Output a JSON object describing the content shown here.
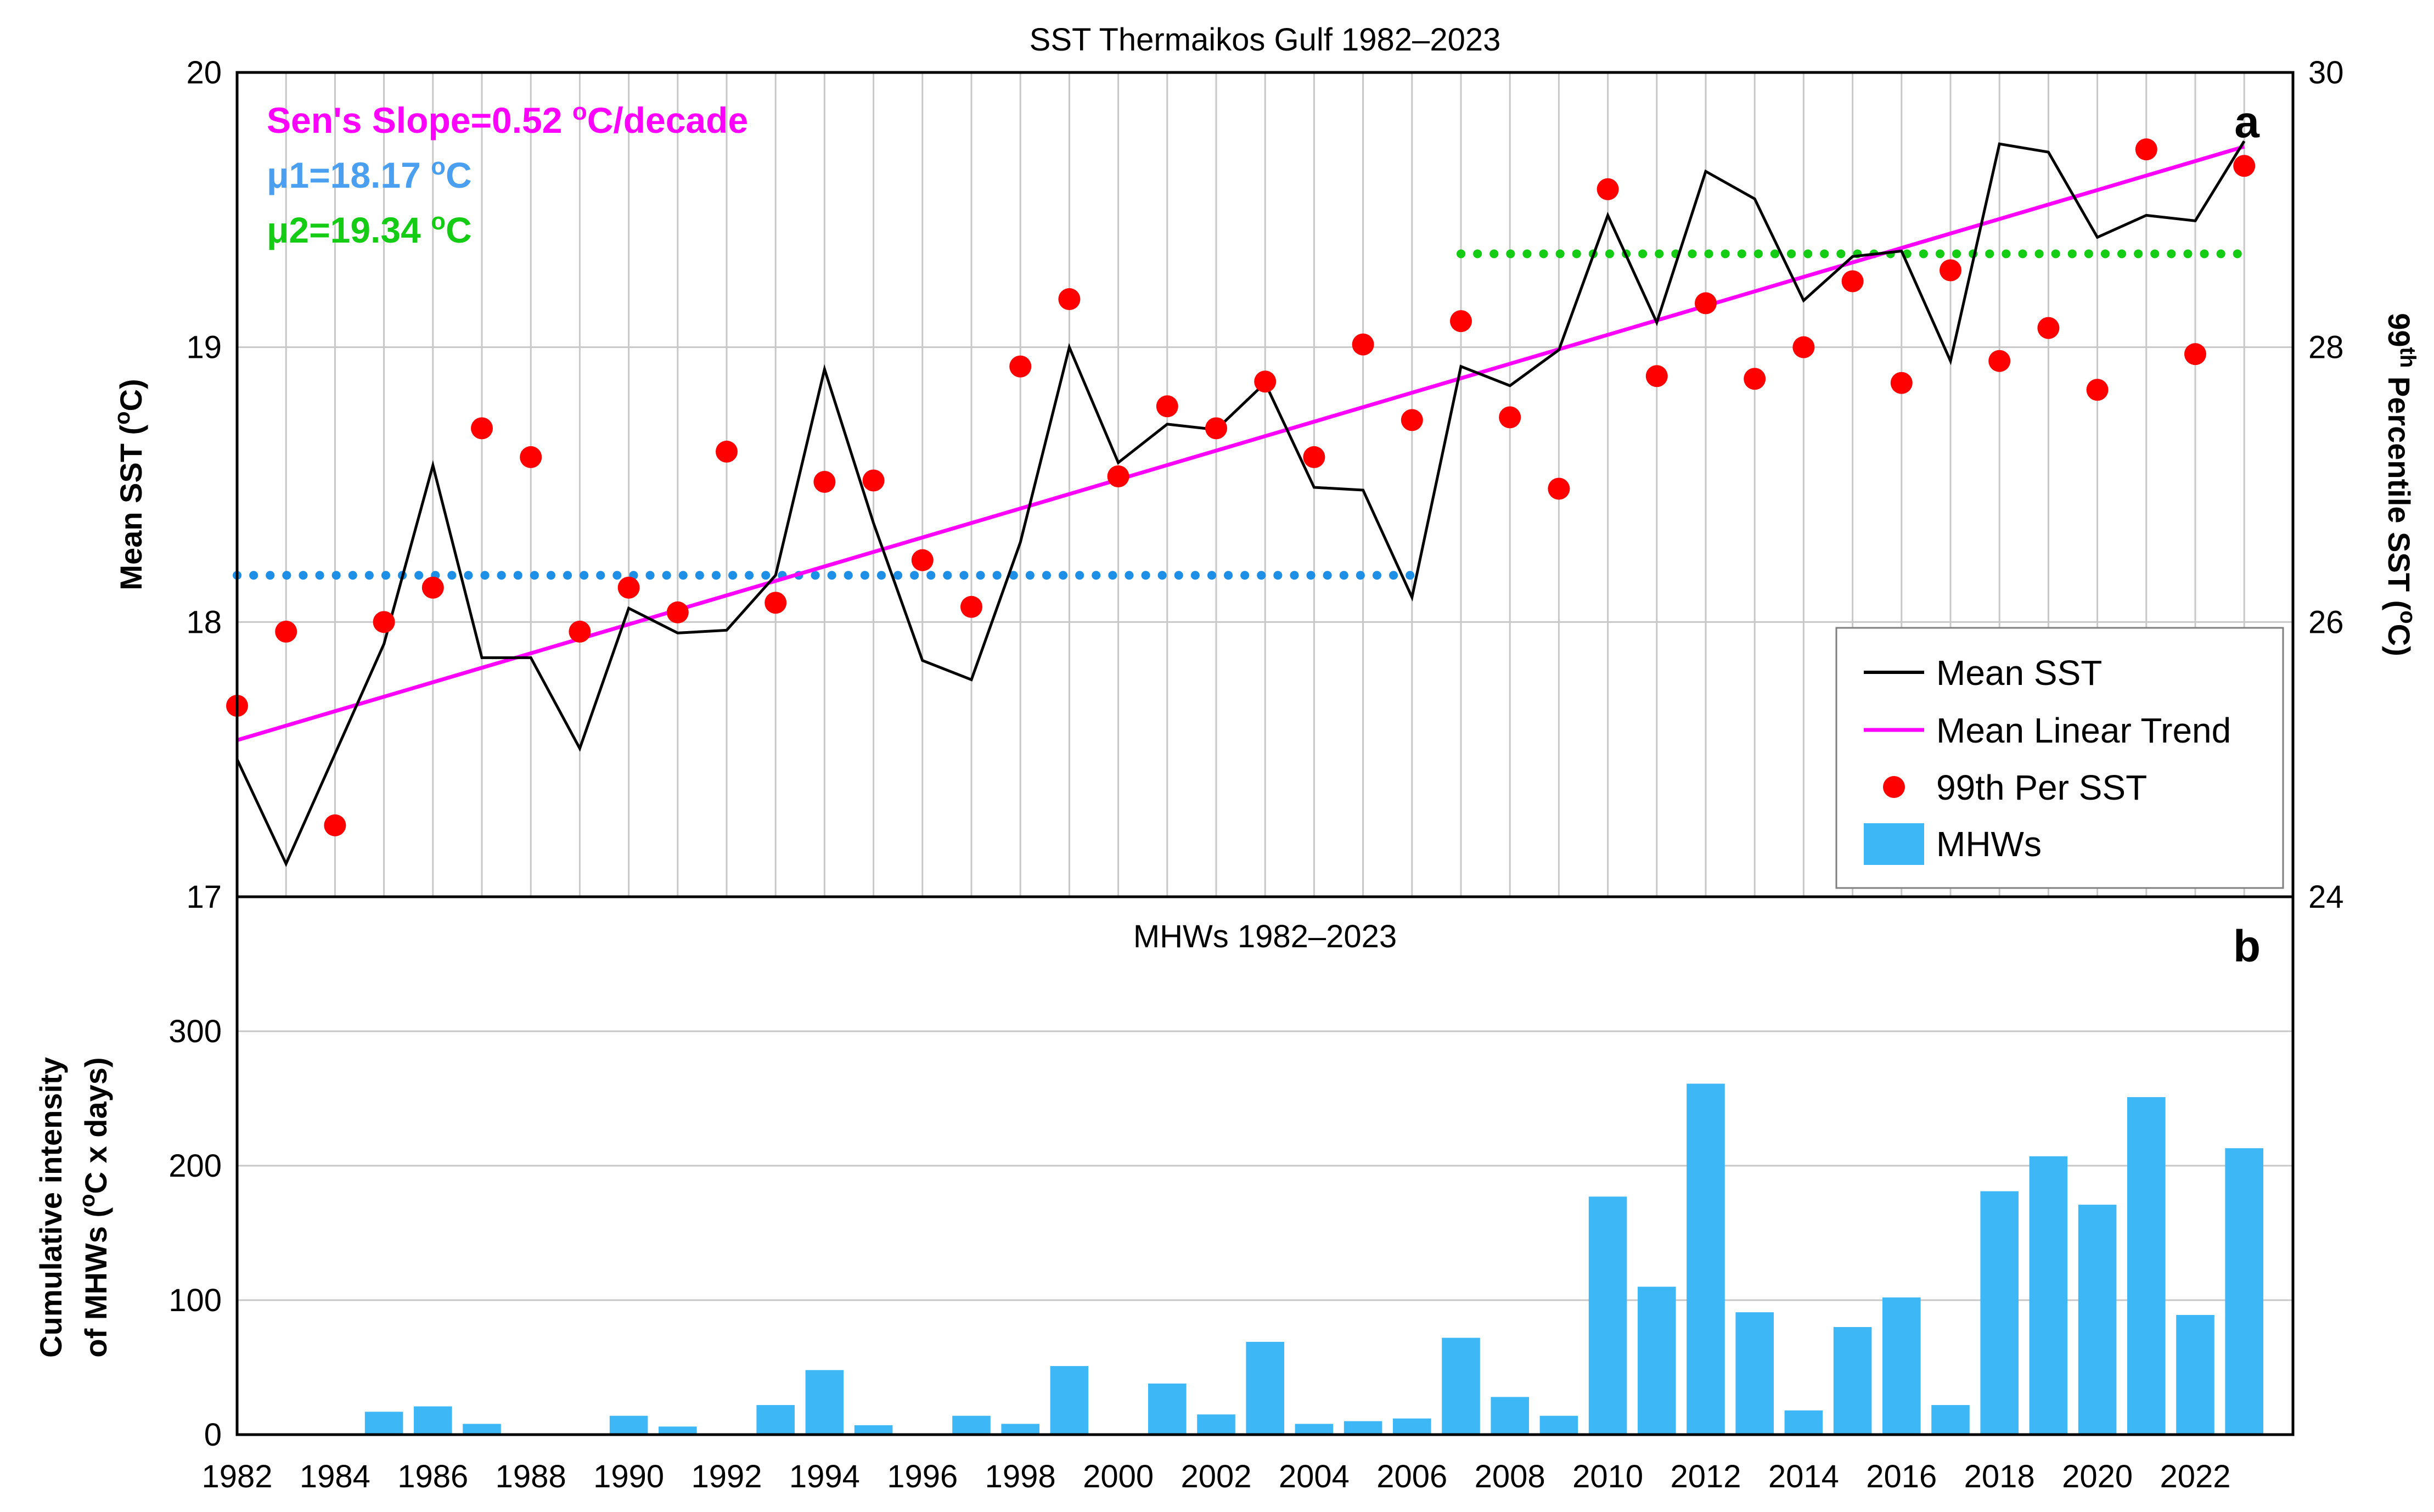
{
  "chart_data": [
    {
      "type": "line",
      "panel": "a",
      "title": "SST Thermaikos Gulf 1982–2023",
      "ylabel": "Mean SST (ºC)",
      "ylabel_html": [
        "Mean SST (",
        "o",
        "C)"
      ],
      "y2label_parts": [
        "99",
        "th",
        " Percentile SST (",
        "o",
        "C)"
      ],
      "ylim": [
        17,
        20
      ],
      "y2lim": [
        24,
        30
      ],
      "yticks": [
        "17",
        "18",
        "19",
        "20"
      ],
      "y2ticks": [
        "24",
        "26",
        "28",
        "30"
      ],
      "grid": true,
      "legend_placement": "lower-right",
      "x": [
        1982,
        1983,
        1984,
        1985,
        1986,
        1987,
        1988,
        1989,
        1990,
        1991,
        1992,
        1993,
        1994,
        1995,
        1996,
        1997,
        1998,
        1999,
        2000,
        2001,
        2002,
        2003,
        2004,
        2005,
        2006,
        2007,
        2008,
        2009,
        2010,
        2011,
        2012,
        2013,
        2014,
        2015,
        2016,
        2017,
        2018,
        2019,
        2020,
        2021,
        2022,
        2023
      ],
      "series": [
        {
          "name": "Mean SST",
          "type": "line",
          "axis": "left",
          "color": "#000000",
          "values": [
            17.5,
            17.12,
            17.52,
            17.92,
            18.57,
            17.87,
            17.87,
            17.54,
            18.05,
            17.96,
            17.97,
            18.17,
            18.92,
            18.36,
            17.86,
            17.79,
            18.29,
            19.0,
            18.58,
            18.72,
            18.7,
            18.87,
            18.49,
            18.48,
            18.09,
            18.93,
            18.86,
            18.99,
            19.48,
            19.09,
            19.64,
            19.54,
            19.17,
            19.33,
            19.35,
            18.95,
            19.74,
            19.71,
            19.4,
            19.48,
            19.46,
            19.75
          ]
        },
        {
          "name": "Mean Linear Trend",
          "type": "line",
          "axis": "left",
          "color": "#ff00ff",
          "start": [
            1982,
            17.57
          ],
          "end": [
            2023,
            19.73
          ]
        },
        {
          "name": "99th Per SST",
          "type": "scatter",
          "axis": "right",
          "color": "#ff0000",
          "values": [
            25.39,
            25.93,
            24.52,
            26.0,
            26.25,
            27.41,
            27.2,
            25.93,
            26.25,
            26.07,
            27.24,
            26.14,
            27.02,
            27.03,
            26.45,
            26.11,
            27.86,
            28.35,
            27.06,
            27.57,
            27.41,
            27.75,
            27.2,
            28.02,
            27.47,
            28.19,
            27.49,
            26.97,
            29.15,
            27.79,
            28.32,
            27.77,
            28.0,
            28.48,
            27.74,
            28.56,
            27.9,
            28.14,
            27.69,
            29.44,
            27.95,
            29.32
          ]
        }
      ],
      "means": [
        {
          "name": "μ1",
          "value": 18.17,
          "x_range": [
            1982,
            2006
          ],
          "color": "#1e8fe6"
        },
        {
          "name": "μ2",
          "value": 19.34,
          "x_range": [
            2007,
            2023
          ],
          "color": "#14cc14"
        }
      ],
      "annotations": {
        "slope_text": "Sen's Slope=0.52 ",
        "slope_sup": "o",
        "slope_unit": "C/decade",
        "mu1_text": "μ1=18.17 ",
        "mu1_sup": "o",
        "mu1_unit": "C",
        "mu2_text": "μ2=19.34 ",
        "mu2_sup": "o",
        "mu2_unit": "C"
      },
      "legend": [
        "Mean SST",
        "Mean Linear Trend",
        "99th Per SST",
        "MHWs"
      ]
    },
    {
      "type": "bar",
      "panel": "b",
      "title": "MHWs 1982–2023",
      "ylabel_line1": "Cumulative intensity",
      "ylabel_line2_parts": [
        "of MHWs (",
        "o",
        "C x days)"
      ],
      "ylim": [
        0,
        400
      ],
      "yticks": [
        "0",
        "100",
        "200",
        "300"
      ],
      "grid": true,
      "color": "#3eb7f7",
      "categories": [
        1982,
        1983,
        1984,
        1985,
        1986,
        1987,
        1988,
        1989,
        1990,
        1991,
        1992,
        1993,
        1994,
        1995,
        1996,
        1997,
        1998,
        1999,
        2000,
        2001,
        2002,
        2003,
        2004,
        2005,
        2006,
        2007,
        2008,
        2009,
        2010,
        2011,
        2012,
        2013,
        2014,
        2015,
        2016,
        2017,
        2018,
        2019,
        2020,
        2021,
        2022,
        2023
      ],
      "values": [
        0,
        0,
        0,
        17,
        21,
        8,
        0,
        0,
        14,
        6,
        0,
        22,
        48,
        7,
        0,
        14,
        8,
        51,
        0,
        38,
        15,
        69,
        8,
        10,
        12,
        72,
        28,
        14,
        177,
        110,
        261,
        91,
        18,
        80,
        102,
        22,
        181,
        207,
        171,
        251,
        89,
        213
      ],
      "xticks": [
        "1982",
        "1984",
        "1986",
        "1988",
        "1990",
        "1992",
        "1994",
        "1996",
        "1998",
        "2000",
        "2002",
        "2004",
        "2006",
        "2008",
        "2010",
        "2012",
        "2014",
        "2016",
        "2018",
        "2020",
        "2022"
      ]
    }
  ],
  "panel_letters": {
    "a": "a",
    "b": "b"
  }
}
